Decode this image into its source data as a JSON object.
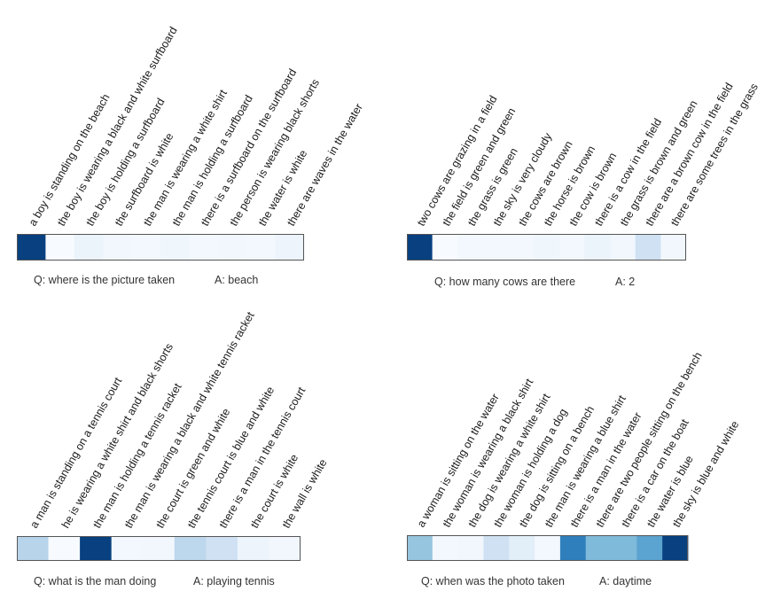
{
  "chart_data": [
    {
      "type": "heatmap",
      "categories": [
        "a boy is standing on the beach",
        "the boy is wearing a black and white surfboard",
        "the boy is holding a surfboard",
        "the surfboard is white",
        "the man is wearing a white shirt",
        "the man is holding a surfboard",
        "there is a surfboard on the surfboard",
        "the person is wearing black shorts",
        "the water is white",
        "there are waves in the water"
      ],
      "values": [
        1.0,
        0.0,
        0.06,
        0.03,
        0.02,
        0.04,
        0.02,
        0.03,
        0.02,
        0.05
      ],
      "question": "Q: where is the picture taken",
      "answer": "A: beach"
    },
    {
      "type": "heatmap",
      "categories": [
        "two cows are grazing in a field",
        "the field is green and green",
        "the grass is green",
        "the sky is very cloudy",
        "the cows are brown",
        "the horse is brown",
        "the cow is brown",
        "there is a cow in the field",
        "the grass is brown and green",
        "there are a brown cow in the field",
        "there are some trees in the grass"
      ],
      "values": [
        1.0,
        0.0,
        0.02,
        0.02,
        0.02,
        0.04,
        0.02,
        0.06,
        0.03,
        0.2,
        0.03
      ],
      "question": "Q: how many cows are there",
      "answer": "A: 2"
    },
    {
      "type": "heatmap",
      "categories": [
        "a man is standing on a tennis court",
        "he is wearing a white shirt and black shorts",
        "the man is holding a tennis racket",
        "the man is wearing a black and white tennis racket",
        "the court is green and white",
        "the tennis court is blue and white",
        "there is a man in the tennis court",
        "the court is white",
        "the wall is white"
      ],
      "values": [
        0.3,
        0.0,
        1.0,
        0.02,
        0.03,
        0.28,
        0.2,
        0.05,
        0.03
      ],
      "question": "Q: what is the man doing",
      "answer": "A: playing tennis"
    },
    {
      "type": "heatmap",
      "categories": [
        "a woman is sitting on the water",
        "the woman is wearing a black shirt",
        "the dog is wearing a white shirt",
        "the woman is holding a dog",
        "the dog is sitting on a bench",
        "the man is wearing a blue shirt",
        "there is a man in the water",
        "there are two people sitting on the bench",
        "there is a car on the boat",
        "the water is blue",
        "the sky is blue and white"
      ],
      "values": [
        0.4,
        0.02,
        0.03,
        0.2,
        0.1,
        0.02,
        0.7,
        0.45,
        0.45,
        0.55,
        1.0
      ],
      "question": "Q: when was the photo taken",
      "answer": "A: daytime"
    }
  ]
}
